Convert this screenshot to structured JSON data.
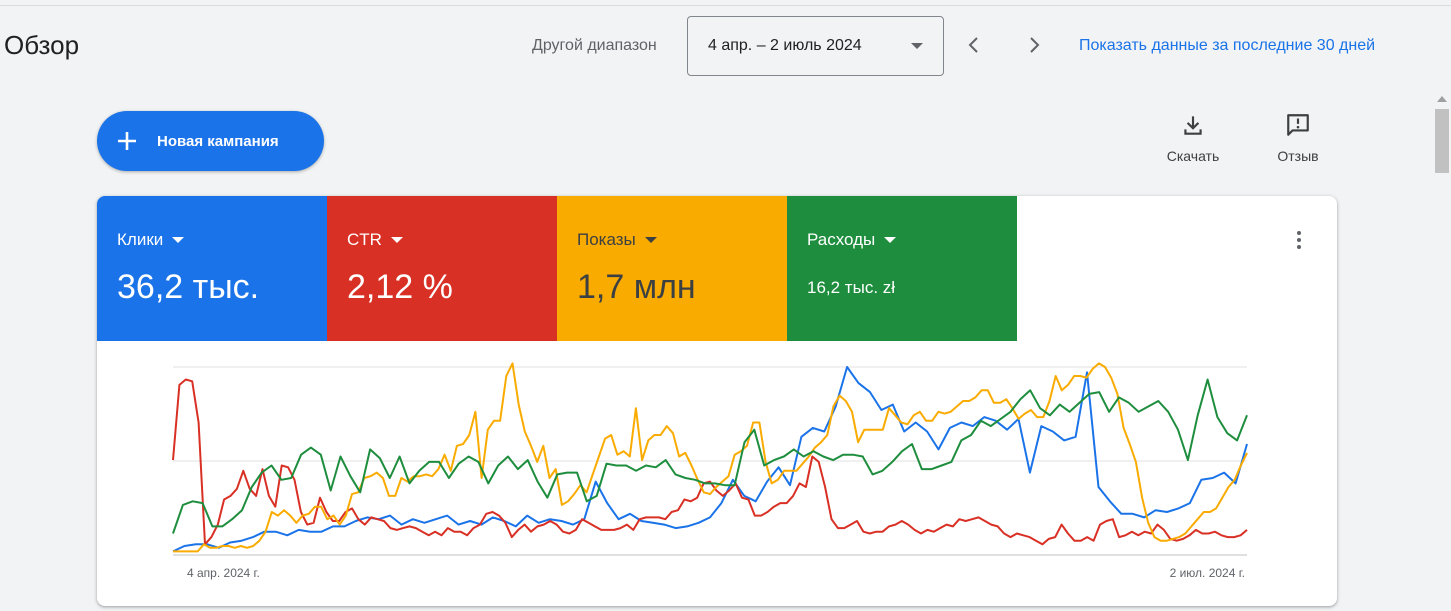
{
  "header": {
    "title": "Обзор",
    "range_label": "Другой диапазон",
    "range_value": "4 апр. – 2 июль 2024",
    "last30_link": "Показать данные за последние 30 дней"
  },
  "toolbar": {
    "new_campaign": "Новая кампания",
    "download": "Скачать",
    "feedback": "Отзыв"
  },
  "metrics": [
    {
      "label": "Клики",
      "value": "36,2 тыс.",
      "color": "#1a73e8"
    },
    {
      "label": "CTR",
      "value": "2,12 %",
      "color": "#d93025"
    },
    {
      "label": "Показы",
      "value": "1,7 млн",
      "color": "#f9ab00"
    },
    {
      "label": "Расходы",
      "value": "16,2 тыс. zł",
      "color": "#1e8e3e"
    }
  ],
  "chart_data": {
    "type": "line",
    "x_start_label": "4 апр. 2024 г.",
    "x_end_label": "2 июл. 2024 г.",
    "grid": true,
    "series": [
      {
        "color": "#1a73e8",
        "values": [
          2,
          5,
          6,
          6,
          4,
          7,
          8,
          10,
          13,
          13,
          11,
          14,
          13,
          13,
          16,
          16,
          19,
          21,
          20,
          22,
          17,
          20,
          18,
          20,
          22,
          17,
          19,
          17,
          21,
          19,
          16,
          22,
          18,
          20,
          19,
          17,
          20,
          41,
          29,
          20,
          23,
          19,
          18,
          17,
          15,
          16,
          18,
          21,
          29,
          42,
          33,
          30,
          41,
          49,
          39,
          66,
          71,
          69,
          83,
          105,
          96,
          91,
          81,
          84,
          69,
          74,
          69,
          59,
          71,
          74,
          72,
          77,
          75,
          70,
          76,
          46,
          72,
          69,
          64,
          66,
          102,
          38,
          30,
          23,
          23,
          21,
          25,
          24,
          26,
          29,
          42,
          43,
          46,
          40,
          62
        ]
      },
      {
        "color": "#d93025",
        "values": [
          53,
          95,
          98,
          97,
          74,
          6,
          10,
          17,
          31,
          33,
          37,
          47,
          37,
          33,
          48,
          33,
          27,
          50,
          49,
          42,
          24,
          17,
          18,
          32,
          24,
          19,
          19,
          24,
          26,
          20,
          17,
          21,
          20,
          19,
          15,
          14,
          15,
          16,
          15,
          13,
          11,
          13,
          11,
          15,
          13,
          13,
          11,
          15,
          17,
          23,
          24,
          22,
          18,
          10,
          14,
          17,
          13,
          16,
          17,
          19,
          17,
          13,
          12,
          14,
          20,
          18,
          16,
          14,
          14,
          14,
          15,
          17,
          14,
          20,
          21,
          21,
          21,
          20,
          24,
          25,
          31,
          30,
          32,
          40,
          41,
          36,
          33,
          36,
          40,
          32,
          31,
          22,
          22,
          24,
          27,
          29,
          29,
          33,
          40,
          38,
          55,
          52,
          38,
          20,
          15,
          15,
          17,
          19,
          13,
          12,
          13,
          13,
          16,
          17,
          19,
          17,
          14,
          12,
          14,
          13,
          15,
          17,
          16,
          20,
          19,
          20,
          21,
          19,
          17,
          16,
          12,
          10,
          12,
          11,
          10,
          8,
          6,
          9,
          10,
          17,
          12,
          8,
          8,
          10,
          8,
          17,
          19,
          20,
          10,
          11,
          13,
          11,
          13,
          12,
          17,
          14,
          9,
          8,
          9,
          11,
          14,
          12,
          12,
          13,
          11,
          10,
          10,
          11,
          14
        ]
      },
      {
        "color": "#f9ab00",
        "values": [
          2,
          2,
          2,
          2,
          2,
          6,
          4,
          4,
          5,
          5,
          4,
          5,
          4,
          5,
          8,
          13,
          24,
          22,
          25,
          22,
          18,
          22,
          23,
          27,
          27,
          20,
          22,
          17,
          22,
          34,
          35,
          43,
          44,
          46,
          43,
          33,
          33,
          43,
          41,
          44,
          44,
          45,
          44,
          48,
          56,
          47,
          61,
          62,
          67,
          80,
          43,
          70,
          75,
          75,
          100,
          107,
          84,
          69,
          61,
          52,
          61,
          43,
          48,
          28,
          30,
          34,
          39,
          35,
          45,
          55,
          65,
          67,
          56,
          58,
          55,
          82,
          53,
          64,
          67,
          67,
          72,
          68,
          55,
          57,
          50,
          42,
          35,
          34,
          38,
          41,
          44,
          56,
          58,
          61,
          74,
          74,
          52,
          40,
          42,
          47,
          47,
          47,
          51,
          55,
          60,
          63,
          67,
          83,
          89,
          86,
          80,
          63,
          70,
          70,
          70,
          70,
          82,
          78,
          74,
          73,
          78,
          80,
          75,
          75,
          80,
          79,
          80,
          83,
          86,
          86,
          88,
          92,
          92,
          85,
          85,
          87,
          82,
          76,
          79,
          81,
          77,
          77,
          86,
          100,
          92,
          95,
          100,
          100,
          99,
          104,
          107,
          105,
          99,
          90,
          71,
          62,
          52,
          32,
          18,
          10,
          8,
          8,
          9,
          10,
          12,
          16,
          20,
          24,
          24,
          26,
          32,
          38,
          42,
          50,
          57
        ]
      },
      {
        "color": "#1e8e3e",
        "values": [
          12,
          28,
          30,
          29,
          16,
          16,
          20,
          25,
          38,
          46,
          50,
          42,
          43,
          56,
          60,
          56,
          36,
          55,
          44,
          35,
          59,
          54,
          43,
          55,
          40,
          47,
          52,
          52,
          43,
          51,
          55,
          52,
          40,
          50,
          55,
          48,
          53,
          41,
          32,
          45,
          46,
          46,
          30,
          33,
          51,
          50,
          50,
          47,
          50,
          49,
          53,
          45,
          43,
          42,
          40,
          40,
          39,
          39,
          63,
          70,
          50,
          53,
          55,
          59,
          55,
          58,
          55,
          53,
          56,
          56,
          55,
          45,
          47,
          52,
          58,
          62,
          48,
          48,
          50,
          52,
          64,
          67,
          75,
          72,
          76,
          80,
          87,
          92,
          82,
          78,
          84,
          80,
          85,
          90,
          91,
          80,
          88,
          85,
          80,
          83,
          86,
          80,
          70,
          53,
          78,
          98,
          77,
          68,
          64,
          78
        ]
      }
    ]
  }
}
